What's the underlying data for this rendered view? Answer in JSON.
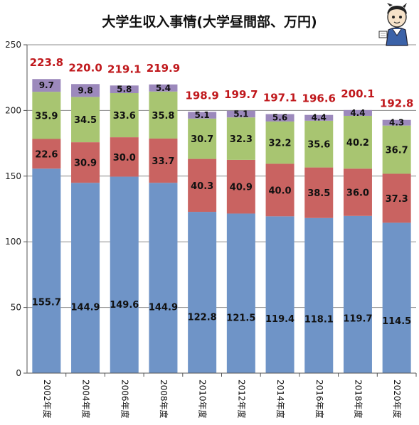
{
  "chart_data": {
    "type": "bar",
    "stacked": true,
    "title": "大学生収入事情(大学昼間部、万円)",
    "xlabel": "",
    "ylabel": "",
    "ylim": [
      0,
      250
    ],
    "yticks": [
      0,
      50,
      100,
      150,
      200,
      250
    ],
    "grid": true,
    "legend": "none",
    "categories": [
      "2002年度",
      "2004年度",
      "2006年度",
      "2008年度",
      "2010年度",
      "2012年度",
      "2014年度",
      "2016年度",
      "2018年度",
      "2020年度"
    ],
    "series": [
      {
        "values": [
          155.7,
          144.9,
          149.6,
          144.9,
          122.8,
          121.5,
          119.4,
          118.1,
          119.7,
          114.5
        ],
        "color": "#6f94c7"
      },
      {
        "values": [
          22.6,
          30.9,
          30.0,
          33.7,
          40.3,
          40.9,
          40.0,
          38.5,
          36.0,
          37.3
        ],
        "color": "#c96361"
      },
      {
        "values": [
          35.9,
          34.5,
          33.6,
          35.8,
          30.7,
          32.3,
          32.2,
          35.6,
          40.2,
          36.7
        ],
        "color": "#a8c571"
      },
      {
        "values": [
          9.7,
          9.8,
          5.8,
          5.4,
          5.1,
          5.1,
          5.6,
          4.4,
          4.4,
          4.3
        ],
        "color": "#9c89bc"
      }
    ],
    "totals": [
      223.8,
      220.0,
      219.1,
      219.9,
      198.9,
      199.7,
      197.1,
      196.6,
      200.1,
      192.8
    ],
    "total_color": "#c0181c"
  }
}
